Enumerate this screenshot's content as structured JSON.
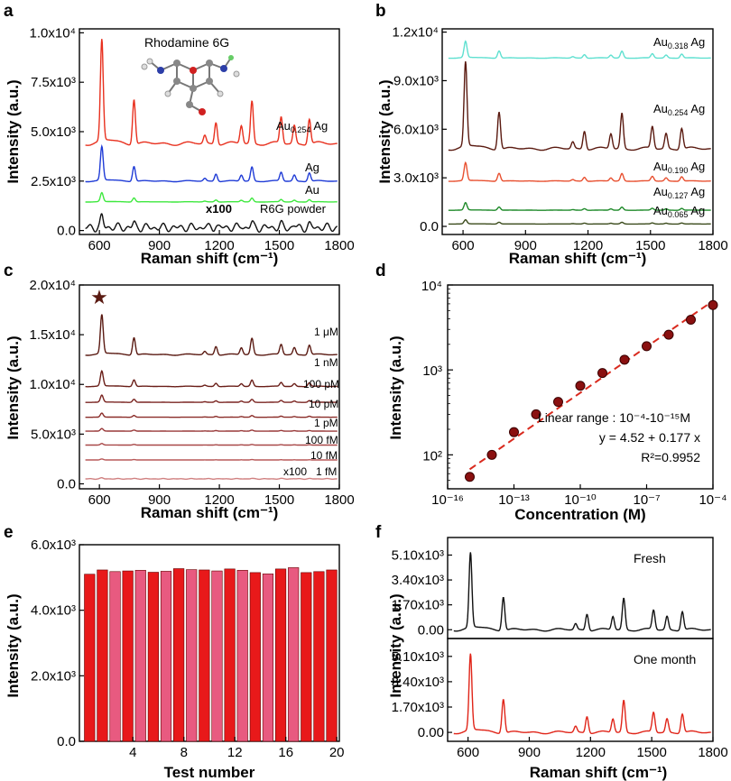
{
  "panels": {
    "a": {
      "letter": "a",
      "xlabel": "Raman shift (cm⁻¹)",
      "ylabel": "Intensity (a.u.)",
      "xticks": [
        "600",
        "900",
        "1200",
        "1500",
        "1800"
      ],
      "yticks": [
        "0.0",
        "2.5x10³",
        "5.0x10³",
        "7.5x10³",
        "1.0x10⁴"
      ],
      "molecule_label": "Rhodamine 6G",
      "x100_label": "x100"
    },
    "b": {
      "letter": "b",
      "xlabel": "Raman shift (cm⁻¹)",
      "ylabel": "Intensity (a.u.)",
      "xticks": [
        "600",
        "900",
        "1200",
        "1500",
        "1800"
      ],
      "yticks": [
        "0.0",
        "3.0x10³",
        "6.0x10³",
        "9.0x10³",
        "1.2x10⁴"
      ]
    },
    "c": {
      "letter": "c",
      "xlabel": "Raman shift (cm⁻¹)",
      "ylabel": "Intensity (a.u.)",
      "xticks": [
        "600",
        "900",
        "1200",
        "1500",
        "1800"
      ],
      "yticks": [
        "0.0",
        "5.0x10³",
        "1.0x10⁴",
        "1.5x10⁴",
        "2.0x10⁴"
      ],
      "star_symbol": "★",
      "x100_label": "x100"
    },
    "d": {
      "letter": "d",
      "xlabel": "Concentration (M)",
      "ylabel": "Intensity (a.u.)",
      "xticks": [
        "10⁻¹⁶",
        "10⁻¹³",
        "10⁻¹⁰",
        "10⁻⁷",
        "10⁻⁴"
      ],
      "yticks": [
        "10²",
        "10³",
        "10⁴"
      ],
      "annotation_range": "Linear range : 10⁻⁴-10⁻¹⁵M",
      "annotation_eq": "y = 4.52 + 0.177 x",
      "annotation_r2": "R²=0.9952"
    },
    "e": {
      "letter": "e",
      "xlabel": "Test number",
      "ylabel": "Intensity (a.u.)",
      "xticks": [
        "4",
        "8",
        "12",
        "16",
        "20"
      ],
      "yticks": [
        "0.0",
        "2.0x10³",
        "4.0x10³",
        "6.0x10³"
      ]
    },
    "f": {
      "letter": "f",
      "xlabel": "Raman shift (cm⁻¹)",
      "ylabel": "Intensity (a.u.)",
      "xticks": [
        "600",
        "900",
        "1200",
        "1500",
        "1800"
      ],
      "yticks": [
        "0.00",
        "1.70x10³",
        "3.40x10³",
        "5.10x10³"
      ],
      "label_top": "Fresh",
      "label_bottom": "One month"
    }
  },
  "chart_data": [
    {
      "id": "a",
      "type": "line",
      "title": "",
      "xlabel": "Raman shift (cm⁻¹)",
      "ylabel": "Intensity (a.u.)",
      "xlim": [
        500,
        1800
      ],
      "ylim": [
        -200,
        10200
      ],
      "series": [
        {
          "name": "Au0.254 Ag",
          "color": "#e8301e",
          "baseline": 4400,
          "scale": 5100
        },
        {
          "name": "Ag",
          "color": "#1f3bd6",
          "baseline": 2500,
          "scale": 1700
        },
        {
          "name": "Au",
          "color": "#3ee83e",
          "baseline": 1450,
          "scale": 450
        },
        {
          "name": "R6G powder",
          "color": "#111111",
          "baseline": 150,
          "scale": 900,
          "note": "x100"
        }
      ]
    },
    {
      "id": "b",
      "type": "line",
      "title": "",
      "xlabel": "Raman shift (cm⁻¹)",
      "ylabel": "Intensity (a.u.)",
      "xlim": [
        500,
        1800
      ],
      "ylim": [
        -500,
        12200
      ],
      "series": [
        {
          "name": "Au0.318 Ag",
          "color": "#5fe0d0",
          "baseline": 10400,
          "scale": 1000
        },
        {
          "name": "Au0.254 Ag",
          "color": "#5a1a10",
          "baseline": 4800,
          "scale": 5200
        },
        {
          "name": "Au0.190 Ag",
          "color": "#e85030",
          "baseline": 2800,
          "scale": 1100
        },
        {
          "name": "Au0.127 Ag",
          "color": "#1f8a2a",
          "baseline": 1000,
          "scale": 450
        },
        {
          "name": "Au0.065 Ag",
          "color": "#3a4a1a",
          "baseline": 150,
          "scale": 250
        }
      ]
    },
    {
      "id": "c",
      "type": "line",
      "title": "",
      "xlabel": "Raman shift (cm⁻¹)",
      "ylabel": "Intensity (a.u.)",
      "xlim": [
        500,
        1800
      ],
      "ylim": [
        -500,
        20000
      ],
      "series": [
        {
          "name": "1 μM",
          "color": "#5a1a12",
          "baseline": 13000,
          "scale": 3900
        },
        {
          "name": "1 nM",
          "color": "#6a1e18",
          "baseline": 9800,
          "scale": 1500
        },
        {
          "name": "100 pM",
          "color": "#7a2420",
          "baseline": 8200,
          "scale": 700
        },
        {
          "name": "10 pM",
          "color": "#8a2c28",
          "baseline": 6700,
          "scale": 400
        },
        {
          "name": "1 pM",
          "color": "#983838",
          "baseline": 5300,
          "scale": 250
        },
        {
          "name": "100 fM",
          "color": "#a84848",
          "baseline": 3900,
          "scale": 150
        },
        {
          "name": "10 fM",
          "color": "#b85858",
          "baseline": 2400,
          "scale": 100
        },
        {
          "name": "1 fM",
          "color": "#d08080",
          "baseline": 500,
          "scale": 150,
          "note": "x100"
        }
      ]
    },
    {
      "id": "d",
      "type": "scatter",
      "title": "",
      "xlabel": "Concentration (M)",
      "ylabel": "Intensity (a.u.)",
      "x_scale": "log",
      "y_scale": "log",
      "xlim_exp": [
        -16,
        -4
      ],
      "ylim_exp": [
        1.6,
        4.0
      ],
      "x_exp": [
        -15,
        -14,
        -13,
        -12,
        -11,
        -10,
        -9,
        -8,
        -7,
        -6,
        -5,
        -4
      ],
      "y": [
        55,
        100,
        185,
        300,
        420,
        650,
        920,
        1320,
        1900,
        2600,
        3900,
        5800
      ],
      "fit": {
        "intercept": 4.52,
        "slope": 0.177,
        "r2": 0.9952
      }
    },
    {
      "id": "e",
      "type": "bar",
      "title": "",
      "xlabel": "Test number",
      "ylabel": "Intensity (a.u.)",
      "ylim": [
        0,
        6000
      ],
      "categories": [
        1,
        2,
        3,
        4,
        5,
        6,
        7,
        8,
        9,
        10,
        11,
        12,
        13,
        14,
        15,
        16,
        17,
        18,
        19,
        20
      ],
      "values": [
        5100,
        5230,
        5180,
        5200,
        5220,
        5160,
        5190,
        5270,
        5240,
        5230,
        5200,
        5260,
        5220,
        5150,
        5110,
        5260,
        5300,
        5150,
        5180,
        5230
      ]
    },
    {
      "id": "f",
      "type": "line",
      "title": "",
      "xlabel": "Raman shift (cm⁻¹)",
      "ylabel": "Intensity (a.u.)",
      "xlim": [
        500,
        1800
      ],
      "ylim": [
        -600,
        6300
      ],
      "series": [
        {
          "name": "Fresh",
          "color": "#111111",
          "baseline": 0,
          "scale": 5100
        },
        {
          "name": "One month",
          "color": "#e02418",
          "baseline": 0,
          "scale": 5100
        }
      ]
    }
  ],
  "peak_positions_cm": [
    612,
    773,
    1127,
    1183,
    1310,
    1363,
    1509,
    1575,
    1650
  ],
  "peak_rel_heights": [
    1.0,
    0.45,
    0.08,
    0.22,
    0.18,
    0.42,
    0.26,
    0.18,
    0.25
  ],
  "series_labels": {
    "a": [
      "Au",
      "0.254",
      " Ag",
      "Ag",
      "Au",
      "R6G powder"
    ],
    "b": [
      "0.318",
      "0.254",
      "0.190",
      "0.127",
      "0.065"
    ],
    "c": [
      "1 μM",
      "1 nM",
      "100 pM",
      "10 pM",
      "1 pM",
      "100 fM",
      "10 fM",
      "1 fM"
    ]
  }
}
